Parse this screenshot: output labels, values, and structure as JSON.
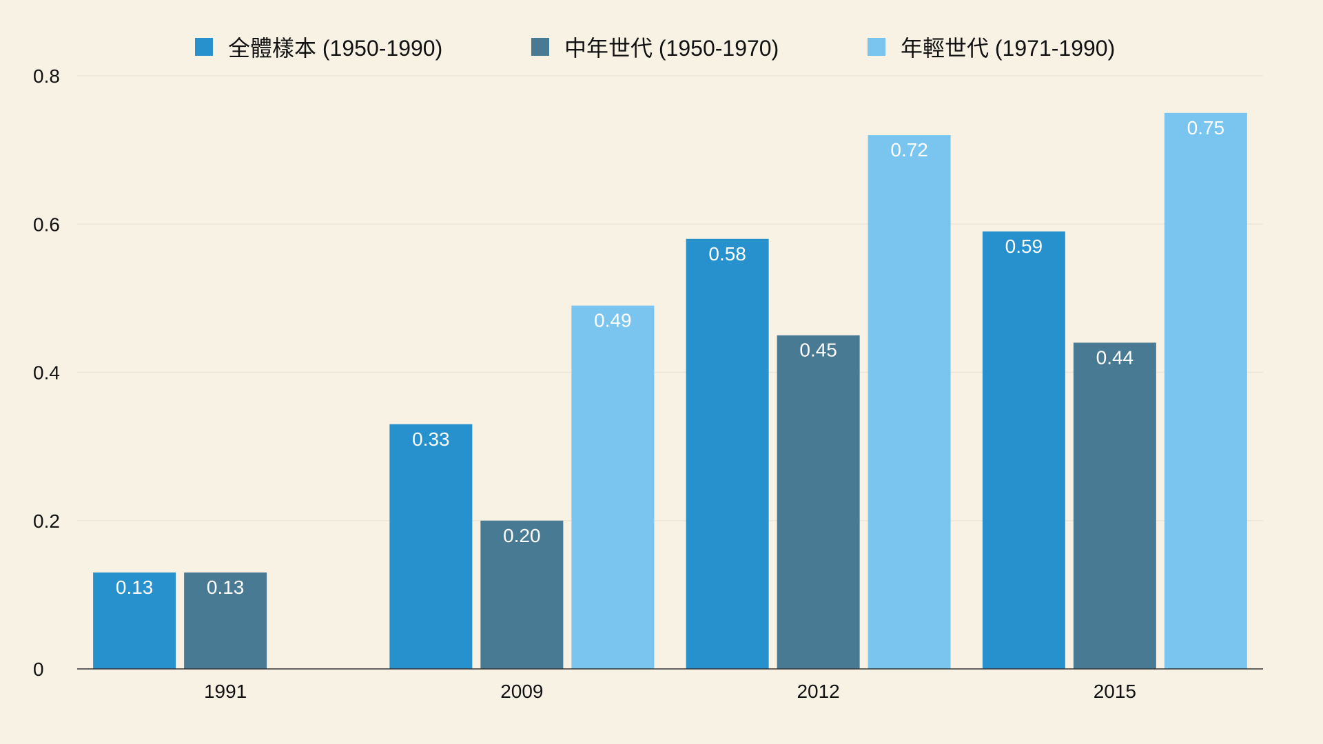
{
  "colors": {
    "background": "#f8f2e5",
    "gridline": "#ece6d8",
    "axis": "#333333"
  },
  "chart_data": {
    "type": "bar",
    "categories": [
      "1991",
      "2009",
      "2012",
      "2015"
    ],
    "series": [
      {
        "name": "全體樣本 (1950-1990)",
        "color": "#2691cd",
        "values": [
          0.13,
          0.33,
          0.58,
          0.59
        ],
        "labels": [
          "0.13",
          "0.33",
          "0.58",
          "0.59"
        ]
      },
      {
        "name": "中年世代 (1950-1970)",
        "color": "#497a94",
        "values": [
          0.13,
          0.2,
          0.45,
          0.44
        ],
        "labels": [
          "0.13",
          "0.20",
          "0.45",
          "0.44"
        ]
      },
      {
        "name": "年輕世代 (1971-1990)",
        "color": "#7ac5ef",
        "values": [
          null,
          0.49,
          0.72,
          0.75
        ],
        "labels": [
          "",
          "0.49",
          "0.72",
          "0.75"
        ]
      }
    ],
    "yticks": [
      "0",
      "0.2",
      "0.4",
      "0.6",
      "0.8"
    ],
    "ylim": [
      0,
      0.8
    ],
    "grid": true,
    "legend": "top-center"
  }
}
